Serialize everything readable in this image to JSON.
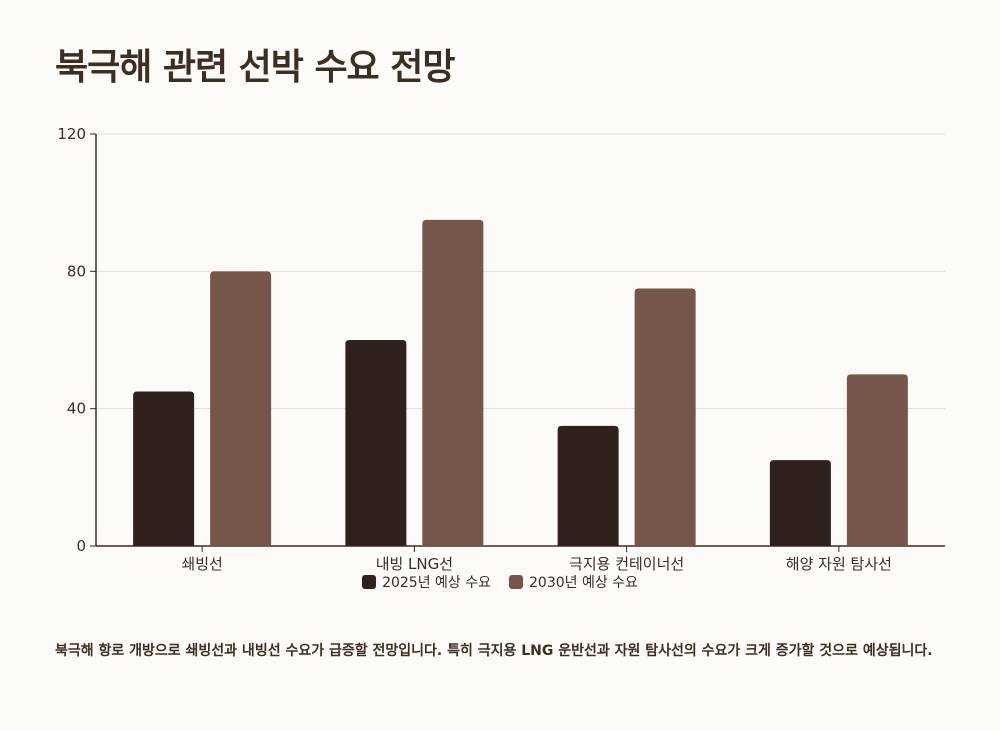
{
  "title": "북극해 관련 선박 수요 전망",
  "chart_data": {
    "type": "bar",
    "categories": [
      "쇄빙선",
      "내빙 LNG선",
      "극지용 컨테이너선",
      "해양 자원 탐사선"
    ],
    "series": [
      {
        "name": "2025년 예상 수요",
        "values": [
          45,
          60,
          35,
          25
        ],
        "color": "#2e211e"
      },
      {
        "name": "2030년 예상 수요",
        "values": [
          80,
          95,
          75,
          50
        ],
        "color": "#76554b"
      }
    ],
    "ylim": [
      0,
      120
    ],
    "yticks": [
      0,
      40,
      80,
      120
    ],
    "grid": true,
    "legend_position": "bottom"
  },
  "note": "북극해 항로 개방으로 쇄빙선과 내빙선 수요가 급증할 전망입니다. 특히 극지용 LNG 운반선과 자원 탐사선의 수요가 크게 증가할 것으로 예상됩니다."
}
